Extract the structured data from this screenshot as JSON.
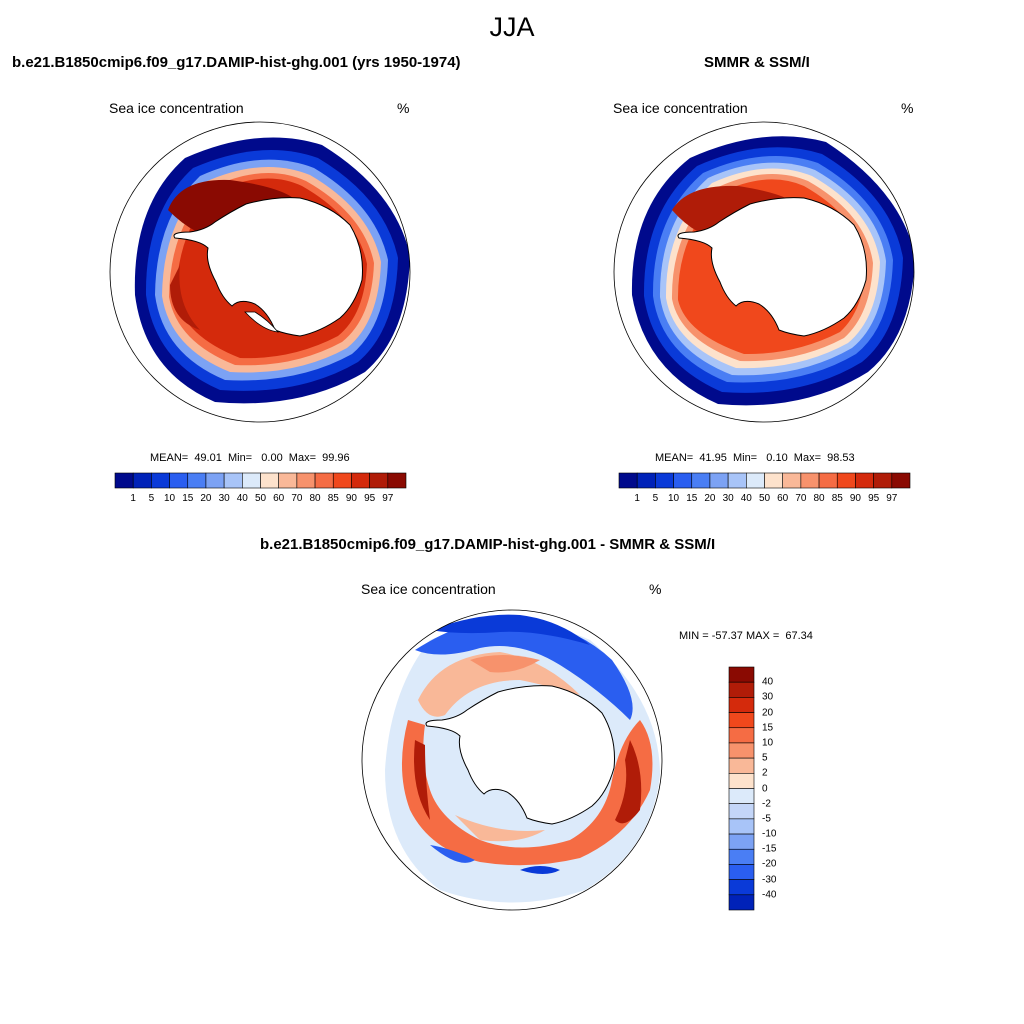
{
  "page": {
    "title": "JJA"
  },
  "panels": [
    {
      "title": "b.e21.B1850cmip6.f09_g17.DAMIP-hist-ghg.001 (yrs 1950-1974)",
      "subtitle_left": "Sea ice concentration",
      "subtitle_right": "%",
      "stats": "MEAN=  49.01  Min=   0.00  Max=  99.96"
    },
    {
      "title": "SMMR & SSM/I",
      "subtitle_left": "Sea ice concentration",
      "subtitle_right": "%",
      "stats": "MEAN=  41.95  Min=   0.10  Max=  98.53"
    },
    {
      "title": "b.e21.B1850cmip6.f09_g17.DAMIP-hist-ghg.001 - SMMR & SSM/I",
      "subtitle_left": "Sea ice concentration",
      "subtitle_right": "%",
      "stats": "MIN = -57.37 MAX =  67.34"
    }
  ],
  "colorbar_conc": {
    "labels": [
      "1",
      "5",
      "10",
      "15",
      "20",
      "30",
      "40",
      "50",
      "60",
      "70",
      "80",
      "85",
      "90",
      "95",
      "97"
    ],
    "colors": [
      "#000a8c",
      "#0022b8",
      "#0a3ad8",
      "#2a5ef0",
      "#4a7ef4",
      "#7ca2f4",
      "#a8c4f8",
      "#dceafa",
      "#fde2cc",
      "#f9b898",
      "#f7926c",
      "#f56c44",
      "#f0481c",
      "#d42a0c",
      "#b01c08",
      "#8a0a02"
    ]
  },
  "colorbar_diff": {
    "labels": [
      "40",
      "30",
      "20",
      "15",
      "10",
      "5",
      "2",
      "0",
      "-2",
      "-5",
      "-10",
      "-15",
      "-20",
      "-30",
      "-40"
    ],
    "colors": [
      "#8a0a02",
      "#b01c08",
      "#d42a0c",
      "#f0481c",
      "#f56c44",
      "#f7926c",
      "#f9b898",
      "#fde2cc",
      "#dceafa",
      "#c4d6f8",
      "#a8c4f8",
      "#7ca2f4",
      "#4a7ef4",
      "#2a5ef0",
      "#0a3ad8",
      "#0022b8"
    ]
  }
}
